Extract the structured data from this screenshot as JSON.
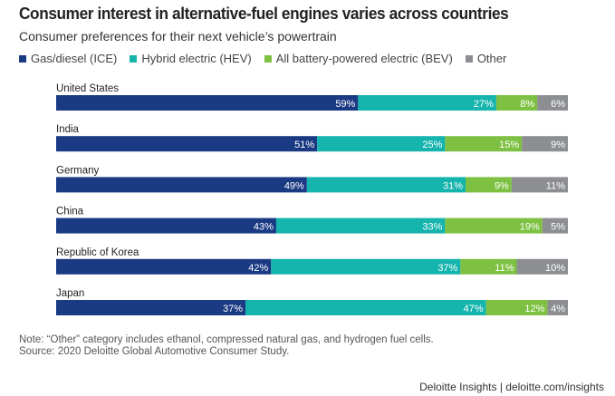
{
  "chart_data": {
    "type": "bar",
    "orientation": "horizontal",
    "stacked": true,
    "title": "Consumer interest in alternative-fuel engines varies across countries",
    "subtitle": "Consumer preferences for their next vehicle’s powertrain",
    "categories": [
      "United States",
      "India",
      "Germany",
      "China",
      "Republic of Korea",
      "Japan"
    ],
    "series": [
      {
        "name": "Gas/diesel (ICE)",
        "color": "#1b3a84",
        "values": [
          59,
          51,
          49,
          43,
          42,
          37
        ]
      },
      {
        "name": "Hybrid electric (HEV)",
        "color": "#15b4ad",
        "values": [
          27,
          25,
          31,
          33,
          37,
          47
        ]
      },
      {
        "name": "All battery-powered electric (BEV)",
        "color": "#7ec142",
        "values": [
          8,
          15,
          9,
          19,
          11,
          12
        ]
      },
      {
        "name": "Other",
        "color": "#8c8e92",
        "values": [
          6,
          9,
          11,
          5,
          10,
          4
        ]
      }
    ],
    "value_suffix": "%",
    "xlim": [
      0,
      100
    ],
    "legend": "top-left",
    "grid": false,
    "xlabel": "",
    "ylabel": ""
  },
  "note": "Note: “Other” category includes ethanol, compressed natural gas, and hydrogen fuel cells.",
  "source": "Source: 2020 Deloitte Global Automotive Consumer Study.",
  "footer": "Deloitte Insights | deloitte.com/insights"
}
